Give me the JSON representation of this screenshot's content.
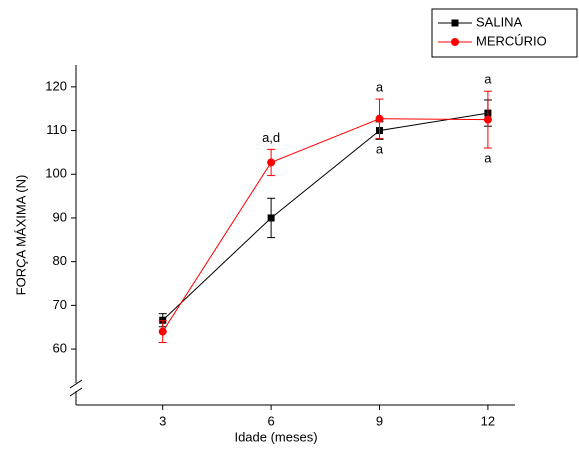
{
  "chart_data": {
    "type": "line",
    "x_label": "Idade (meses)",
    "y_label": "FORÇA MÁXIMA (N)",
    "x": [
      3,
      6,
      9,
      12
    ],
    "series": [
      {
        "name": "SALINA",
        "color": "#000000",
        "marker": "square",
        "values": [
          66.6,
          90,
          110,
          114
        ],
        "errors": [
          1.5,
          4.5,
          2,
          3
        ]
      },
      {
        "name": "MERCÚRIO",
        "color": "#ff0000",
        "marker": "circle",
        "values": [
          64,
          102.7,
          112.7,
          112.5
        ],
        "errors": [
          2.5,
          3,
          4.5,
          6.5
        ]
      }
    ],
    "annotations": [
      {
        "x": 6,
        "above": "a,d"
      },
      {
        "x": 9,
        "above": "a",
        "below": "a"
      },
      {
        "x": 12,
        "above": "a",
        "below": "a"
      }
    ],
    "xlim": [
      0.6,
      12.75
    ],
    "ylim": [
      47.2,
      125
    ],
    "xticks": [
      3,
      6,
      9,
      12
    ],
    "yticks": [
      60,
      70,
      80,
      90,
      100,
      110,
      120
    ],
    "axis_break": true,
    "legend": "upper right"
  }
}
